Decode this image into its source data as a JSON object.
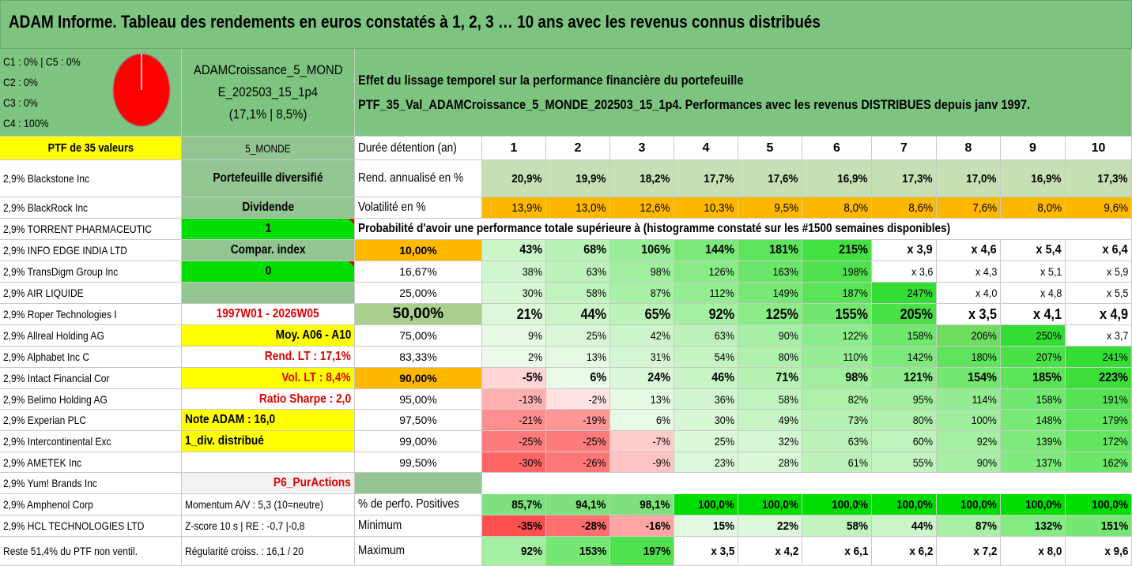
{
  "title": "ADAM Informe. Tableau des rendements en euros constatés à 1, 2, 3 … 10 ans avec les revenus connus distribués",
  "allocation": [
    "C1 : 0% | C5 : 0%",
    "C2 : 0%",
    "C3 : 0%",
    "C4 : 100%"
  ],
  "pie": {
    "fill": "#ff0000",
    "outline": "#8c8c8c",
    "value_C4": 100
  },
  "portfolio": {
    "name_line1": "ADAMCroissance_5_MOND",
    "name_line2": "E_202503_15_1p4",
    "name_line3": "(17,1% | 8,5%)"
  },
  "description": {
    "line1": "Effet du lissage temporel sur la performance financière du portefeuille",
    "line2": "PTF_35_Val_ADAMCroissance_5_MONDE_202503_15_1p4. Performances avec les revenus DISTRIBUES depuis janv 1997."
  },
  "ptf_label": "PTF de 35 valeurs",
  "zone": "5_MONDE",
  "duration_label": "Durée détention (an)",
  "years": [
    "1",
    "2",
    "3",
    "4",
    "5",
    "6",
    "7",
    "8",
    "9",
    "10"
  ],
  "rend_label": "Rend. annualisé en %",
  "rend_values": [
    "20,9%",
    "19,9%",
    "18,2%",
    "17,7%",
    "17,6%",
    "16,9%",
    "17,3%",
    "17,0%",
    "16,9%",
    "17,3%"
  ],
  "vol_label": "Volatilité en %",
  "vol_values": [
    "13,9%",
    "13,0%",
    "12,6%",
    "10,3%",
    "9,5%",
    "8,0%",
    "8,6%",
    "7,6%",
    "8,0%",
    "9,6%"
  ],
  "prob_title": "Probabilité d'avoir une performance totale supérieure à (histogramme constaté sur les #1500 semaines disponibles)",
  "holdings": [
    "2,9% Blackstone Inc",
    "2,9% BlackRock Inc",
    "2,9% TORRENT PHARMACEUTIC",
    "2,9% INFO EDGE INDIA LTD",
    "2,9% TransDigm Group Inc",
    "2,9% AIR LIQUIDE",
    "2,9% Roper Technologies I",
    "2,9% Allreal Holding AG",
    "2,9% Alphabet Inc C",
    "2,9% Intact Financial Cor",
    "2,9% Belimo Holding AG",
    "2,9% Experian PLC",
    "2,9% Intercontinental Exc",
    "2,9% AMETEK Inc",
    "2,9% Yum! Brands Inc",
    "2,9% Amphenol Corp",
    "2,9% HCL TECHNOLOGIES LTD",
    "Reste 51,4% du PTF non ventil."
  ],
  "info": [
    "Portefeuille diversifié",
    "Dividende",
    "1",
    "Compar. index",
    "0",
    "",
    "1997W01 - 2026W05",
    "Moy. A06 - A10",
    "Rend. LT : 17,1%",
    "Vol. LT : 8,4%",
    "Ratio Sharpe : 2,0",
    "Note ADAM : 16,0",
    "1_div. distribué",
    "",
    "P6_PurActions",
    "Momentum A/V : 5,3 (10=neutre)",
    "Z-score 10 s | RE : -0,7 |-0,8",
    "Régularité croiss. : 16,1 / 20"
  ],
  "prob_rows": [
    {
      "p": "10,00%",
      "v": [
        "43%",
        "68%",
        "106%",
        "144%",
        "181%",
        "215%",
        "x 3,9",
        "x 4,6",
        "x 5,4",
        "x 6,4"
      ]
    },
    {
      "p": "16,67%",
      "v": [
        "38%",
        "63%",
        "98%",
        "126%",
        "163%",
        "198%",
        "x 3,6",
        "x 4,3",
        "x 5,1",
        "x 5,9"
      ]
    },
    {
      "p": "25,00%",
      "v": [
        "30%",
        "58%",
        "87%",
        "112%",
        "149%",
        "187%",
        "247%",
        "x 4,0",
        "x 4,8",
        "x 5,5"
      ]
    },
    {
      "p": "50,00%",
      "v": [
        "21%",
        "44%",
        "65%",
        "92%",
        "125%",
        "155%",
        "205%",
        "x 3,5",
        "x 4,1",
        "x 4,9"
      ]
    },
    {
      "p": "75,00%",
      "v": [
        "9%",
        "25%",
        "42%",
        "63%",
        "90%",
        "122%",
        "158%",
        "206%",
        "250%",
        "x 3,7"
      ]
    },
    {
      "p": "83,33%",
      "v": [
        "2%",
        "13%",
        "31%",
        "54%",
        "80%",
        "110%",
        "142%",
        "180%",
        "207%",
        "241%"
      ]
    },
    {
      "p": "90,00%",
      "v": [
        "-5%",
        "6%",
        "24%",
        "46%",
        "71%",
        "98%",
        "121%",
        "154%",
        "185%",
        "223%"
      ]
    },
    {
      "p": "95,00%",
      "v": [
        "-13%",
        "-2%",
        "13%",
        "36%",
        "58%",
        "82%",
        "95%",
        "114%",
        "158%",
        "191%"
      ]
    },
    {
      "p": "97,50%",
      "v": [
        "-21%",
        "-19%",
        "6%",
        "30%",
        "49%",
        "73%",
        "80%",
        "100%",
        "148%",
        "179%"
      ]
    },
    {
      "p": "99,00%",
      "v": [
        "-25%",
        "-25%",
        "-7%",
        "25%",
        "32%",
        "63%",
        "60%",
        "92%",
        "139%",
        "172%"
      ]
    },
    {
      "p": "99,50%",
      "v": [
        "-30%",
        "-26%",
        "-9%",
        "23%",
        "28%",
        "61%",
        "55%",
        "90%",
        "137%",
        "162%"
      ]
    }
  ],
  "pos_label": "% de perfo. Positives",
  "pos_values": [
    "85,7%",
    "94,1%",
    "98,1%",
    "100,0%",
    "100,0%",
    "100,0%",
    "100,0%",
    "100,0%",
    "100,0%",
    "100,0%"
  ],
  "min_label": "Minimum",
  "min_values": [
    "-35%",
    "-28%",
    "-16%",
    "15%",
    "22%",
    "58%",
    "44%",
    "87%",
    "132%",
    "151%"
  ],
  "max_label": "Maximum",
  "max_values": [
    "92%",
    "153%",
    "197%",
    "x 3,5",
    "x 4,2",
    "x 6,1",
    "x 6,2",
    "x 7,2",
    "x 8,0",
    "x 9,6"
  ],
  "colors": {
    "header_green": "#7cc47f",
    "label_green": "#92c591",
    "yellow": "#ffff00",
    "bright_green": "#00dd00",
    "orange": "#ffb800",
    "pale_green": "#c6e0b4",
    "pink": "#f8d0d0",
    "red_text": "#e00000"
  }
}
